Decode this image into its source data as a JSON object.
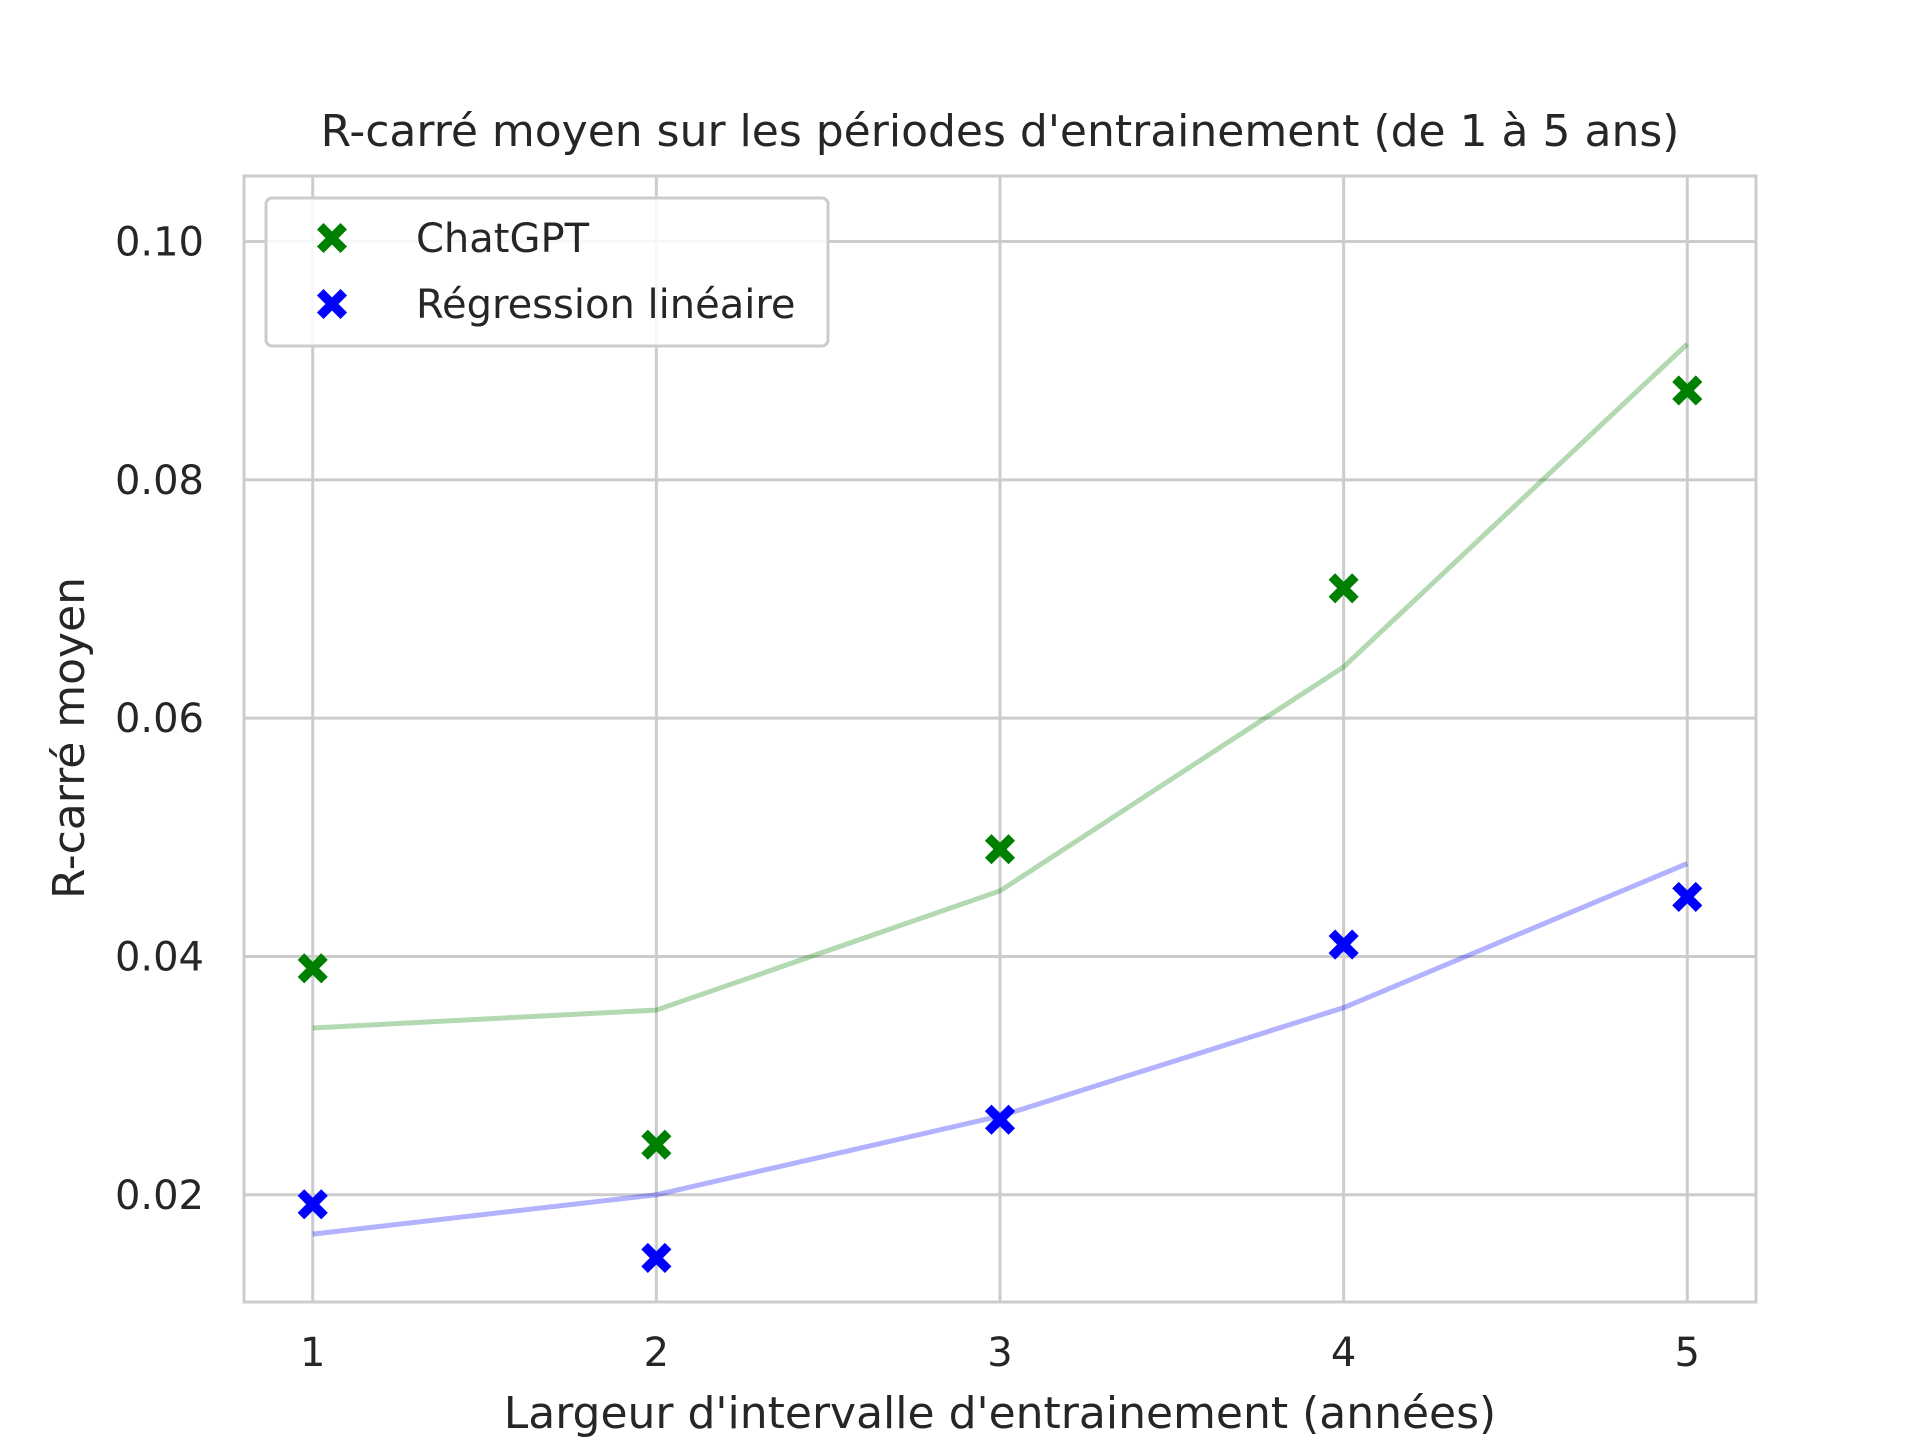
{
  "chart_data": {
    "type": "scatter",
    "title": "R-carré moyen sur les périodes d'entrainement (de 1 à 5 ans)",
    "xlabel": "Largeur d'intervalle d'entrainement (années)",
    "ylabel": "R-carré moyen",
    "x": [
      1,
      2,
      3,
      4,
      5
    ],
    "xticks": [
      "1",
      "2",
      "3",
      "4",
      "5"
    ],
    "yticks": [
      "0.02",
      "0.04",
      "0.06",
      "0.08",
      "0.10"
    ],
    "xlim": [
      0.8,
      5.2
    ],
    "ylim": [
      0.011,
      0.1055
    ],
    "grid": true,
    "legend_position": "top-left",
    "series": [
      {
        "name": "ChatGPT",
        "color": "#008000",
        "marker": "X",
        "values": [
          0.039,
          0.0242,
          0.049,
          0.0709,
          0.0875
        ],
        "trend": [
          0.034,
          0.0355,
          0.0455,
          0.0643,
          0.0914
        ]
      },
      {
        "name": "Régression linéaire",
        "color": "#0000ff",
        "marker": "X",
        "values": [
          0.0192,
          0.0147,
          0.0263,
          0.041,
          0.045
        ],
        "trend": [
          0.0167,
          0.02,
          0.0266,
          0.0357,
          0.0478
        ]
      }
    ]
  }
}
